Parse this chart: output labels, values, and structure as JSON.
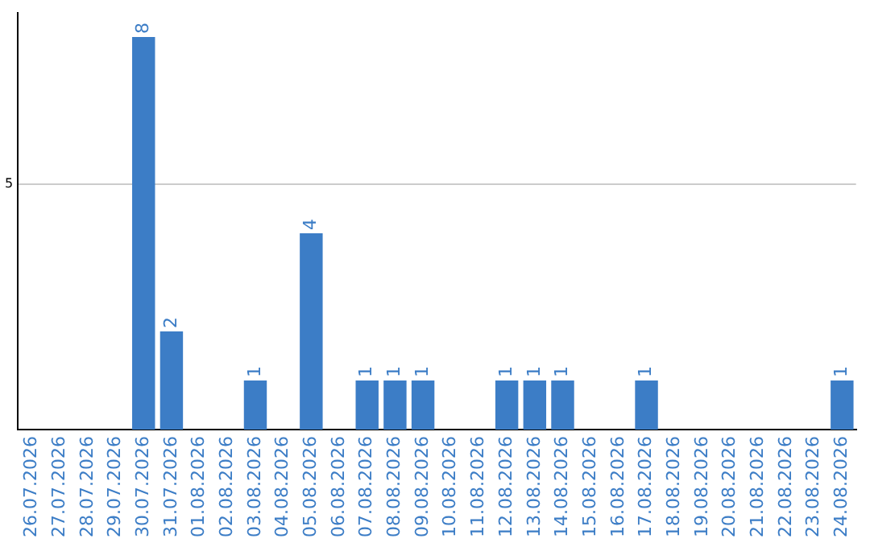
{
  "chart_data": {
    "type": "bar",
    "categories": [
      "26.07.2026",
      "27.07.2026",
      "28.07.2026",
      "29.07.2026",
      "30.07.2026",
      "31.07.2026",
      "01.08.2026",
      "02.08.2026",
      "03.08.2026",
      "04.08.2026",
      "05.08.2026",
      "06.08.2026",
      "07.08.2026",
      "08.08.2026",
      "09.08.2026",
      "10.08.2026",
      "11.08.2026",
      "12.08.2026",
      "13.08.2026",
      "14.08.2026",
      "15.08.2026",
      "16.08.2026",
      "17.08.2026",
      "18.08.2026",
      "19.08.2026",
      "20.08.2026",
      "21.08.2026",
      "22.08.2026",
      "23.08.2026",
      "24.08.2026"
    ],
    "values": [
      0,
      0,
      0,
      0,
      8,
      2,
      0,
      0,
      1,
      0,
      4,
      0,
      1,
      1,
      1,
      0,
      0,
      1,
      1,
      1,
      0,
      0,
      1,
      0,
      0,
      0,
      0,
      0,
      0,
      1
    ],
    "value_labels": [
      null,
      null,
      null,
      null,
      "8",
      "2",
      null,
      null,
      "1",
      null,
      "4",
      null,
      "1",
      "1",
      "1",
      null,
      null,
      "1",
      "1",
      "1",
      null,
      null,
      "1",
      null,
      null,
      null,
      null,
      null,
      null,
      "1"
    ],
    "color": "#3c7dc6",
    "ylim": [
      0,
      8.5
    ],
    "yticks": [
      5
    ],
    "grid": "y",
    "legend": false
  }
}
